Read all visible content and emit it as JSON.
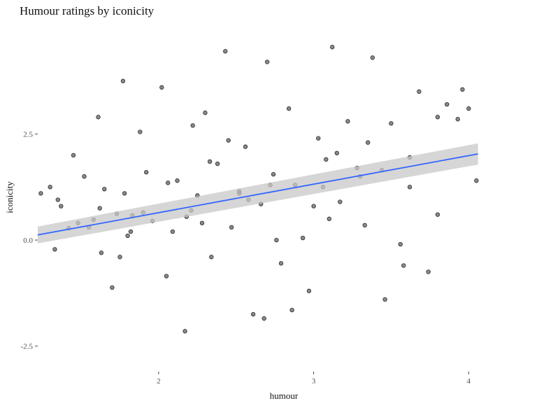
{
  "chart_data": {
    "type": "scatter",
    "title": "Humour ratings by iconicity",
    "xlabel": "humour",
    "ylabel": "iconicity",
    "xlim": [
      1.22,
      4.08
    ],
    "ylim": [
      -3.1,
      5.0
    ],
    "x_ticks": [
      {
        "value": 2,
        "label": "2"
      },
      {
        "value": 3,
        "label": "3"
      },
      {
        "value": 4,
        "label": "4"
      }
    ],
    "y_ticks": [
      {
        "value": 2.5,
        "label": "2.5"
      },
      {
        "value": 0.0,
        "label": "0.0"
      },
      {
        "value": -2.5,
        "label": "-2.5"
      }
    ],
    "grid": false,
    "legend": "none",
    "point_style": {
      "fill": "#4a4a4a",
      "opacity": 0.65
    },
    "points": {
      "x": [
        1.24,
        1.3,
        1.33,
        1.37,
        1.42,
        1.45,
        1.52,
        1.55,
        1.58,
        1.61,
        1.65,
        1.7,
        1.73,
        1.77,
        1.8,
        1.83,
        1.88,
        1.92,
        1.96,
        2.02,
        2.09,
        2.12,
        2.17,
        2.21,
        2.25,
        2.3,
        2.34,
        2.38,
        2.43,
        2.47,
        2.52,
        2.56,
        2.61,
        2.66,
        2.7,
        2.74,
        2.79,
        2.84,
        2.88,
        2.93,
        2.97,
        3.03,
        3.08,
        3.12,
        3.17,
        3.22,
        3.28,
        3.33,
        3.38,
        3.44,
        3.5,
        3.56,
        3.62,
        3.68,
        3.74,
        3.8,
        3.86,
        3.93,
        4.0,
        4.05,
        1.35,
        1.48,
        1.63,
        1.78,
        1.9,
        2.05,
        2.18,
        2.33,
        2.45,
        2.58,
        2.72,
        2.86,
        3.0,
        3.15,
        3.3,
        3.46,
        3.62,
        3.8,
        1.62,
        1.82,
        2.06,
        2.28,
        2.52,
        2.76,
        3.06,
        3.35,
        1.75,
        2.22,
        2.68,
        3.1,
        3.58,
        3.96
      ],
      "y": [
        1.1,
        1.25,
        -0.22,
        0.8,
        0.28,
        2.0,
        1.5,
        0.3,
        0.48,
        2.9,
        1.2,
        -1.12,
        0.62,
        3.75,
        0.1,
        0.58,
        2.55,
        1.6,
        0.45,
        3.6,
        0.2,
        1.4,
        -2.15,
        0.7,
        1.05,
        3.0,
        -0.4,
        1.8,
        4.45,
        0.3,
        1.15,
        2.2,
        -1.75,
        0.85,
        4.2,
        1.55,
        -0.55,
        3.1,
        1.3,
        0.05,
        -1.2,
        2.4,
        1.9,
        4.55,
        0.9,
        2.8,
        1.7,
        0.35,
        4.3,
        1.65,
        2.75,
        -0.1,
        1.25,
        3.5,
        -0.75,
        0.6,
        3.2,
        2.85,
        3.1,
        1.4,
        0.95,
        0.4,
        -0.3,
        1.1,
        0.65,
        -0.85,
        0.55,
        1.85,
        2.35,
        0.95,
        1.3,
        -1.65,
        0.8,
        2.05,
        1.5,
        -1.4,
        1.95,
        2.9,
        0.75,
        0.2,
        1.35,
        0.4,
        1.1,
        0.0,
        1.25,
        2.3,
        -0.4,
        2.7,
        -1.85,
        0.5,
        -0.6,
        3.55
      ]
    },
    "fit_line": {
      "color": "#3366ff",
      "band_color": "#c8c8c8",
      "x": [
        1.22,
        4.06
      ],
      "y": [
        0.12,
        2.03
      ],
      "band_low": [
        -0.08,
        1.78
      ],
      "band_high": [
        0.32,
        2.28
      ]
    }
  }
}
